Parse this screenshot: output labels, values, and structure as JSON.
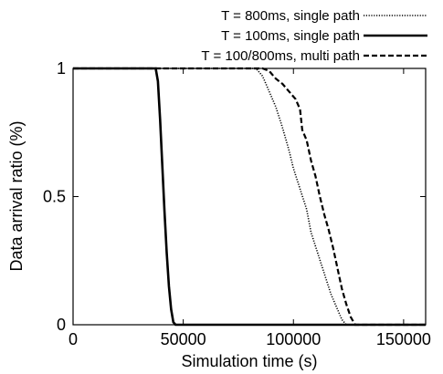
{
  "chart_data": {
    "type": "line",
    "title": "",
    "xlabel": "Simulation time (s)",
    "ylabel": "Data arrival ratio (%)",
    "xlim": [
      0,
      160000
    ],
    "ylim": [
      0,
      1
    ],
    "xticks": [
      0,
      50000,
      100000,
      150000
    ],
    "xtick_labels": [
      "0",
      "50000",
      "100000",
      "150000"
    ],
    "yticks": [
      0,
      0.5,
      1
    ],
    "ytick_labels": [
      "0",
      "0.5",
      "1"
    ],
    "grid": false,
    "legend_position": "top-right, outside plot",
    "series": [
      {
        "name": "T = 800ms, single path",
        "style": "dotted",
        "x": [
          0,
          83000,
          86000,
          89000,
          92000,
          95000,
          98000,
          100000,
          103000,
          106000,
          108000,
          111000,
          114000,
          117000,
          120000,
          122000,
          124000,
          160000
        ],
        "y": [
          1,
          1,
          0.97,
          0.91,
          0.85,
          0.77,
          0.68,
          0.61,
          0.53,
          0.45,
          0.36,
          0.28,
          0.2,
          0.12,
          0.06,
          0.02,
          0,
          0
        ]
      },
      {
        "name": "T = 100ms, single path",
        "style": "solid",
        "x": [
          0,
          37500,
          38500,
          39500,
          40500,
          41500,
          42500,
          43500,
          44500,
          45500,
          46500,
          160000
        ],
        "y": [
          1,
          1,
          0.95,
          0.8,
          0.62,
          0.44,
          0.28,
          0.15,
          0.06,
          0.01,
          0,
          0
        ]
      },
      {
        "name": "T = 100/800ms, multi path",
        "style": "dashed",
        "x": [
          0,
          86000,
          89000,
          92000,
          95000,
          97000,
          99000,
          101000,
          103000,
          104000,
          106000,
          108000,
          110000,
          112000,
          114000,
          116000,
          118000,
          120000,
          122000,
          124000,
          126000,
          128000,
          160000
        ],
        "y": [
          1,
          1,
          0.99,
          0.96,
          0.94,
          0.92,
          0.9,
          0.88,
          0.84,
          0.76,
          0.72,
          0.64,
          0.58,
          0.5,
          0.43,
          0.37,
          0.3,
          0.22,
          0.14,
          0.08,
          0.03,
          0,
          0
        ]
      }
    ]
  },
  "colors": {
    "line": "#000000",
    "axis": "#000000",
    "background": "#ffffff"
  }
}
